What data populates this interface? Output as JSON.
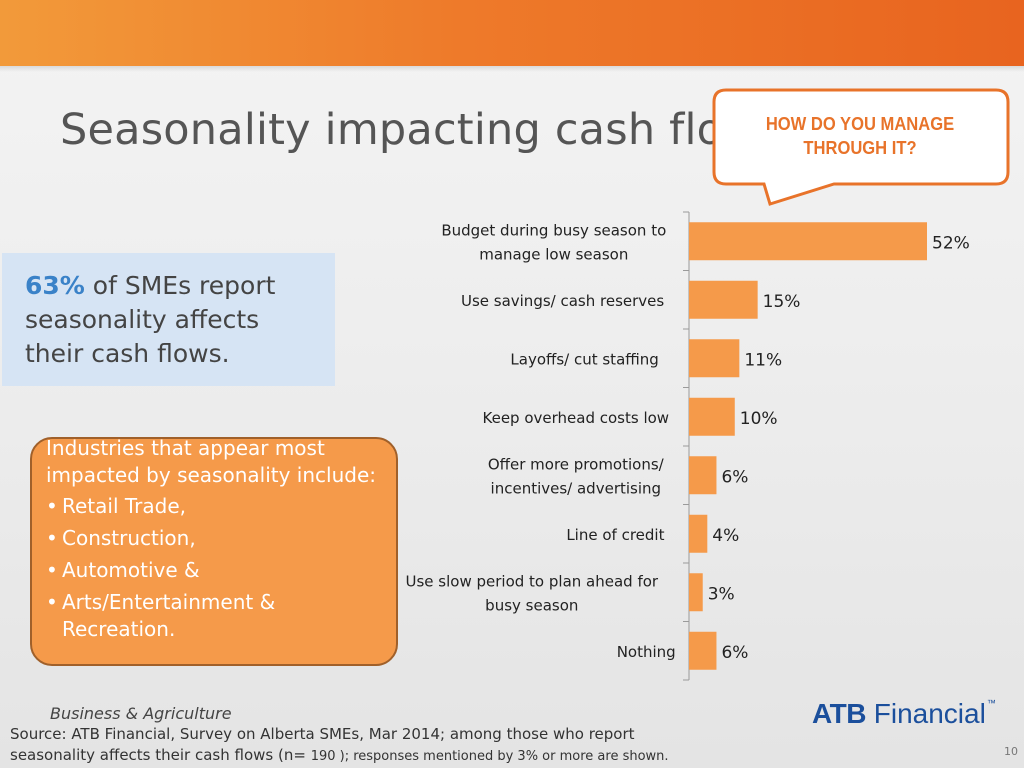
{
  "slide": {
    "title": "Seasonality impacting cash flow",
    "callout": "HOW DO YOU MANAGE THROUGH IT?",
    "stat": {
      "pct": "63%",
      "text": " of SMEs report seasonality affects their cash flows."
    },
    "industries": {
      "intro": "Industries that appear most impacted by seasonality include:",
      "items": [
        "Retail Trade,",
        "Construction,",
        "Automotive &",
        "Arts/Entertainment & Recreation."
      ]
    },
    "footer": {
      "division": "Business & Agriculture",
      "source_line1": "Source:  ATB Financial, Survey on Alberta SMEs, Mar 2014;  among those who report",
      "source_line2a": "seasonality affects their cash flows (n= ",
      "source_line2b": "190 ); responses mentioned by 3% or more are shown.",
      "page": "10"
    },
    "logo": {
      "atb": "ATB",
      "financial": "Financial",
      "tm": "™"
    }
  },
  "colors": {
    "header": "#ee7a2a",
    "bar": "#f59a4a",
    "callout_border": "#e8732a",
    "stat_box": "#d6e4f4",
    "stat_pct": "#3a82c8",
    "logo": "#1b4f9c"
  },
  "chart_data": {
    "type": "bar",
    "orientation": "horizontal",
    "categories": [
      "Budget during busy season to manage low season",
      "Use savings/ cash reserves",
      "Layoffs/ cut staffing",
      "Keep overhead costs low",
      "Offer more promotions/ incentives/ advertising",
      "Line of credit",
      "Use slow period to plan ahead for busy season",
      "Nothing"
    ],
    "category_lines": [
      [
        "Budget during busy season to",
        "manage low season"
      ],
      [
        "Use savings/ cash reserves"
      ],
      [
        "Layoffs/ cut staffing"
      ],
      [
        "Keep overhead costs low"
      ],
      [
        "Offer more promotions/",
        "incentives/ advertising"
      ],
      [
        "Line of credit"
      ],
      [
        "Use slow period to plan ahead for",
        "busy season"
      ],
      [
        "Nothing"
      ]
    ],
    "values": [
      52,
      15,
      11,
      10,
      6,
      4,
      3,
      6
    ],
    "value_labels": [
      "52%",
      "15%",
      "11%",
      "10%",
      "6%",
      "4%",
      "3%",
      "6%"
    ],
    "xlim": [
      0,
      52
    ],
    "grid": false,
    "legend": "none"
  }
}
